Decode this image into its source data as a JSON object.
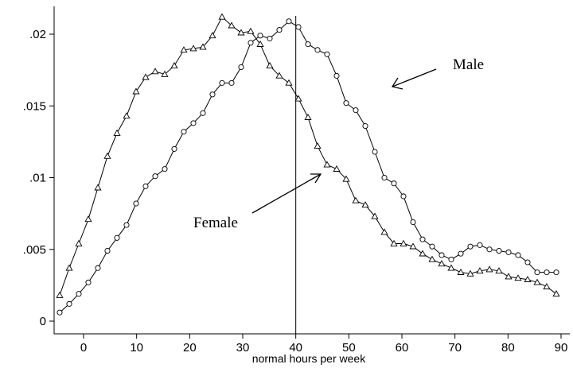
{
  "chart_data": {
    "type": "line",
    "title": "",
    "xlabel": "normal hours per week",
    "ylabel": "",
    "xlim": [
      -5,
      92
    ],
    "ylim": [
      0,
      0.0218
    ],
    "grid": false,
    "xticks": [
      0,
      10,
      20,
      30,
      40,
      50,
      60,
      70,
      80,
      90
    ],
    "xtick_labels": [
      "0",
      "10",
      "20",
      "30",
      "40",
      "50",
      "60",
      "70",
      "80",
      "90"
    ],
    "yticks": [
      0,
      0.005,
      0.01,
      0.015,
      0.02
    ],
    "ytick_labels": [
      "0",
      ".005",
      ".01",
      ".015",
      ".02"
    ],
    "reference_line_x": 40,
    "annotations": [
      {
        "text": "Male",
        "target_series": "circle-series"
      },
      {
        "text": "Female",
        "target_series": "triangle-series"
      }
    ],
    "series": [
      {
        "marker": "triangle",
        "x": [
          -4.5,
          -2.7,
          -0.9,
          0.9,
          2.7,
          4.5,
          6.3,
          8.1,
          9.9,
          11.7,
          13.5,
          15.3,
          17.1,
          18.9,
          20.7,
          22.5,
          24.3,
          26.1,
          27.9,
          29.7,
          31.5,
          33.3,
          35.1,
          36.9,
          38.7,
          40.5,
          42.3,
          44.1,
          45.9,
          47.7,
          49.5,
          51.3,
          53.1,
          54.9,
          56.7,
          58.5,
          60.3,
          62.1,
          63.9,
          65.7,
          67.5,
          69.3,
          71.1,
          72.9,
          74.7,
          76.5,
          78.3,
          80.1,
          81.9,
          83.7,
          85.5,
          87.3,
          89.1
        ],
        "y": [
          0.0018,
          0.0037,
          0.0054,
          0.0071,
          0.0093,
          0.0115,
          0.0131,
          0.0143,
          0.016,
          0.017,
          0.0174,
          0.0172,
          0.0178,
          0.0189,
          0.019,
          0.0191,
          0.0199,
          0.0212,
          0.0206,
          0.0201,
          0.0202,
          0.0193,
          0.0178,
          0.0171,
          0.0166,
          0.0155,
          0.0142,
          0.0122,
          0.0109,
          0.0106,
          0.0099,
          0.0084,
          0.0081,
          0.0073,
          0.0062,
          0.0054,
          0.0054,
          0.0052,
          0.0047,
          0.0043,
          0.004,
          0.0037,
          0.0034,
          0.0033,
          0.0035,
          0.0036,
          0.0035,
          0.0031,
          0.003,
          0.0029,
          0.0027,
          0.0024,
          0.0019
        ]
      },
      {
        "marker": "circle",
        "x": [
          -4.5,
          -2.7,
          -0.9,
          0.9,
          2.7,
          4.5,
          6.3,
          8.1,
          9.9,
          11.7,
          13.5,
          15.3,
          17.1,
          18.9,
          20.7,
          22.5,
          24.3,
          26.1,
          27.9,
          29.7,
          31.5,
          33.3,
          35.1,
          36.9,
          38.7,
          40.5,
          42.3,
          44.1,
          45.9,
          47.7,
          49.5,
          51.3,
          53.1,
          54.9,
          56.7,
          58.5,
          60.3,
          62.1,
          63.9,
          65.7,
          67.5,
          69.3,
          71.1,
          72.9,
          74.7,
          76.5,
          78.3,
          80.1,
          81.9,
          83.7,
          85.5,
          87.3,
          89.1
        ],
        "y": [
          0.0006,
          0.0012,
          0.0019,
          0.0027,
          0.0037,
          0.0049,
          0.0058,
          0.0067,
          0.0082,
          0.0094,
          0.0101,
          0.0106,
          0.012,
          0.0132,
          0.0138,
          0.0145,
          0.0158,
          0.0166,
          0.0166,
          0.0177,
          0.0194,
          0.0199,
          0.0197,
          0.0203,
          0.0209,
          0.0205,
          0.0193,
          0.0189,
          0.0186,
          0.0171,
          0.0152,
          0.0147,
          0.0136,
          0.0118,
          0.01,
          0.0096,
          0.0087,
          0.0069,
          0.0057,
          0.0052,
          0.0046,
          0.0043,
          0.0047,
          0.0052,
          0.0053,
          0.005,
          0.0049,
          0.0048,
          0.0046,
          0.0041,
          0.0034,
          0.0034,
          0.0034
        ]
      }
    ]
  }
}
